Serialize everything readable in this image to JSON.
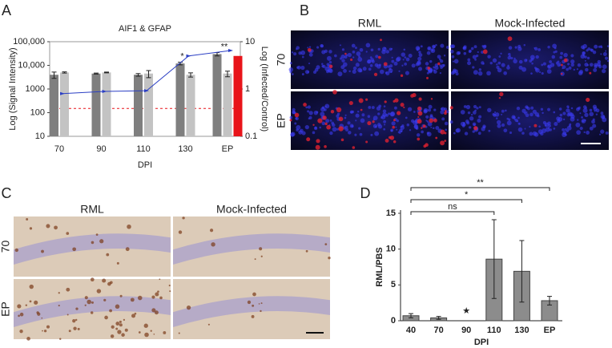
{
  "chart_data": [
    {
      "type": "bar",
      "panel": "A",
      "title": "AIF1 & GFAP",
      "xlabel": "DPI",
      "ylabel": "Log (Signal Intensity)",
      "y2label": "Log (Infected/Control)",
      "categories": [
        "70",
        "90",
        "110",
        "130",
        "EP"
      ],
      "log_scale": true,
      "ylim": [
        10,
        100000
      ],
      "yticks": [
        10,
        100,
        1000,
        {
          "value": 10000,
          "label": "10,000"
        },
        {
          "value": 100000,
          "label": "100,000"
        }
      ],
      "y2lim": [
        0.1,
        10
      ],
      "y2ticks": [
        0.1,
        1,
        10
      ],
      "series": [
        {
          "color": "#7f7f7f",
          "values": [
            4000,
            4500,
            4000,
            12000,
            30000
          ],
          "errors": [
            1200,
            200,
            500,
            1500,
            5000
          ]
        },
        {
          "color": "#c3c3c3",
          "values": [
            5000,
            5000,
            4500,
            4000,
            4500
          ],
          "errors": [
            300,
            200,
            1500,
            800,
            1200
          ]
        },
        {
          "color": "#e8141a",
          "values": [
            null,
            null,
            null,
            null,
            25000
          ],
          "errors": [
            null,
            null,
            null,
            null,
            null
          ]
        },
        {
          "type": "line",
          "axis": "y2",
          "color": "#2b3fc4",
          "values": [
            0.8,
            0.89,
            0.92,
            5,
            6.5
          ]
        }
      ],
      "reference_line": 150,
      "reference_color": "#e8141a",
      "annotations": [
        {
          "text": "*",
          "category": "130"
        },
        {
          "text": "**",
          "category": "EP"
        }
      ]
    },
    {
      "type": "bar",
      "panel": "D",
      "xlabel": "DPI",
      "ylabel": "RML/PBS",
      "categories": [
        "40",
        "70",
        "90",
        "110",
        "130",
        "EP"
      ],
      "values": [
        0.7,
        0.4,
        null,
        8.6,
        6.9,
        2.8
      ],
      "errors": [
        0.3,
        0.2,
        null,
        5.5,
        4.3,
        0.6
      ],
      "color": "#8c8c8c",
      "ylim": [
        0,
        15
      ],
      "yticks": [
        0,
        5,
        10,
        15
      ],
      "missing_marker": "★",
      "annotations": [
        {
          "text": "ns",
          "from": "40",
          "to": "110"
        },
        {
          "text": "*",
          "from": "40",
          "to": "130"
        },
        {
          "text": "**",
          "from": "40",
          "to": "EP"
        }
      ]
    }
  ],
  "image_panels": [
    {
      "panel": "B",
      "columns": [
        "RML",
        "Mock-Infected"
      ],
      "rows": [
        "70",
        "EP"
      ]
    },
    {
      "panel": "C",
      "columns": [
        "RML",
        "Mock-Infected"
      ],
      "rows": [
        "70",
        "EP"
      ]
    }
  ]
}
